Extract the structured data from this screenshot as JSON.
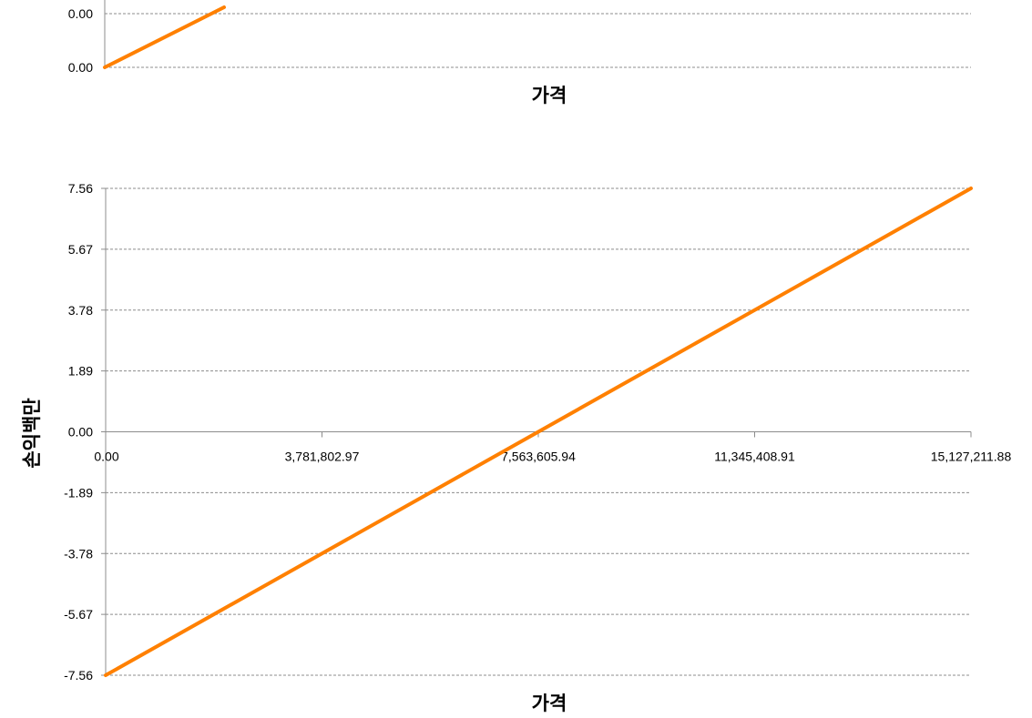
{
  "chart_data": [
    {
      "type": "line",
      "title": "",
      "xlabel": "가격",
      "ylabel": "",
      "visible_y_tick_labels": [
        "0.00",
        "0.00"
      ],
      "series_color": "#ff8000",
      "grid": true,
      "legend": "none"
    },
    {
      "type": "line",
      "title": "",
      "xlabel": "가격",
      "ylabel": "손익백만",
      "x_tick_labels": [
        "0.00",
        "3,781,802.97",
        "7,563,605.94",
        "11,345,408.91",
        "15,127,211.88"
      ],
      "y_tick_labels": [
        "7.56",
        "5.67",
        "3.78",
        "1.89",
        "0.00",
        "-1.89",
        "-3.78",
        "-5.67",
        "-7.56"
      ],
      "xlim": [
        0,
        15127211.88
      ],
      "ylim": [
        -7.56,
        7.56
      ],
      "grid": true,
      "legend": "none",
      "series": [
        {
          "color": "#ff8000",
          "x": [
            0,
            15127211.88
          ],
          "y": [
            -7.56,
            7.56
          ]
        }
      ]
    }
  ]
}
